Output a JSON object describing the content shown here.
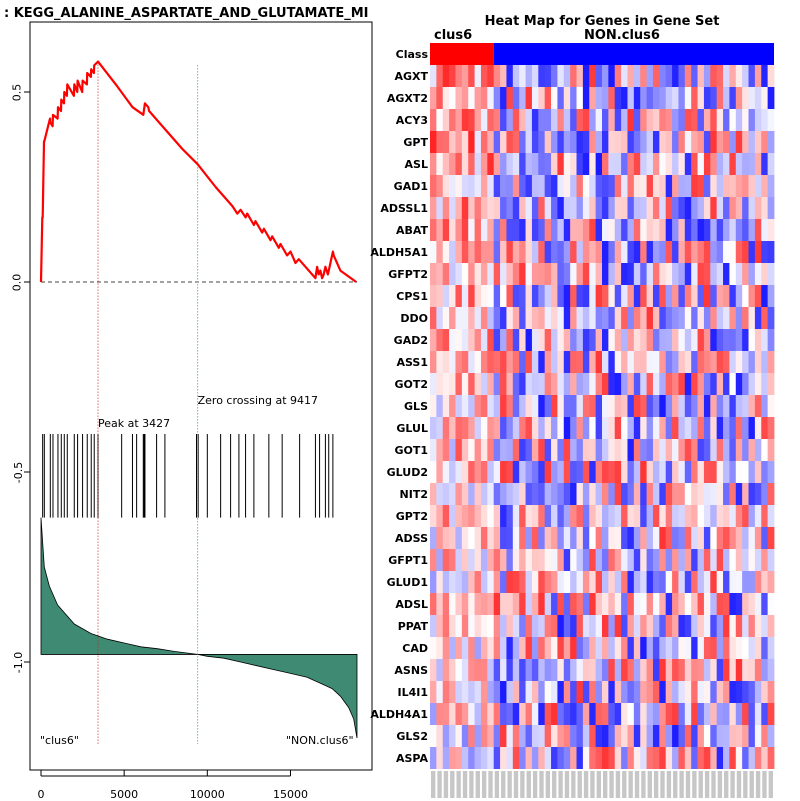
{
  "chart_data": [
    {
      "type": "line",
      "title": ": KEGG_ALANINE_ASPARTATE_AND_GLUTAMATE_MI",
      "xlabel": "",
      "ylabel": "",
      "xlim": [
        0,
        19000
      ],
      "ylim": [
        -1.25,
        0.65
      ],
      "x_ticks": [
        0,
        5000,
        10000,
        15000
      ],
      "x_tick_labels": [
        "0",
        "5000",
        "10000",
        "15000"
      ],
      "y_ticks": [
        0.5,
        0.0,
        -0.5,
        -1.0
      ],
      "y_tick_labels": [
        "0.5",
        "0.0",
        "-0.5",
        "-1.0"
      ],
      "peak": {
        "x": 3427,
        "label": "Peak at 3427"
      },
      "zero_crossing": {
        "x": 9417,
        "label": "Zero crossing at 9417"
      },
      "left_class_label": "\"clus6\"",
      "right_class_label": "\"NON.clus6\"",
      "es_curve": {
        "x": [
          0,
          80,
          100,
          180,
          200,
          540,
          560,
          700,
          720,
          1000,
          1020,
          1200,
          1220,
          1380,
          1400,
          1560,
          1580,
          1980,
          2000,
          2180,
          2200,
          2480,
          2500,
          2760,
          2780,
          3000,
          3020,
          3180,
          3200,
          3427,
          4500,
          5500,
          6150,
          6250,
          6450,
          6500,
          7500,
          8500,
          9417,
          10500,
          11500,
          11800,
          12000,
          12300,
          12400,
          12800,
          12900,
          13300,
          13400,
          13800,
          13900,
          14300,
          14400,
          14800,
          15000,
          15300,
          15500,
          16500,
          16600,
          16700,
          16800,
          16900,
          17000,
          17100,
          17250,
          17350,
          17550,
          17600,
          18000,
          18950
        ],
        "y": [
          0,
          0.17,
          0.17,
          0.37,
          0.37,
          0.43,
          0.42,
          0.41,
          0.44,
          0.43,
          0.46,
          0.45,
          0.48,
          0.47,
          0.5,
          0.49,
          0.52,
          0.49,
          0.52,
          0.5,
          0.53,
          0.5,
          0.53,
          0.52,
          0.55,
          0.54,
          0.56,
          0.55,
          0.57,
          0.58,
          0.52,
          0.46,
          0.44,
          0.47,
          0.46,
          0.45,
          0.4,
          0.35,
          0.31,
          0.25,
          0.2,
          0.18,
          0.19,
          0.17,
          0.18,
          0.15,
          0.16,
          0.13,
          0.14,
          0.11,
          0.12,
          0.09,
          0.1,
          0.07,
          0.08,
          0.05,
          0.06,
          0.01,
          0.04,
          0.02,
          0.03,
          0.01,
          0.02,
          0.04,
          0.02,
          0.04,
          0.08,
          0.07,
          0.03,
          0.0
        ]
      },
      "hit_positions": [
        100,
        200,
        560,
        720,
        1020,
        1220,
        1400,
        1580,
        2000,
        2200,
        2500,
        2780,
        3020,
        3200,
        3427,
        4850,
        5500,
        5750,
        6150,
        6200,
        6250,
        6950,
        7450,
        9350,
        9450,
        10000,
        10800,
        11400,
        11900,
        12300,
        12800,
        13700,
        14500,
        15550,
        16500,
        16750,
        17100,
        17300,
        17550
      ],
      "ranked_metric": {
        "x": [
          0,
          200,
          500,
          1000,
          2000,
          3000,
          4000,
          5000,
          6000,
          7000,
          8000,
          9417,
          10000,
          11000,
          12000,
          13000,
          14000,
          15000,
          16000,
          17000,
          17500,
          18000,
          18500,
          18800,
          19000
        ],
        "y": [
          -0.62,
          -0.75,
          -0.8,
          -0.85,
          -0.9,
          -0.925,
          -0.94,
          -0.95,
          -0.96,
          -0.965,
          -0.972,
          -0.98,
          -0.985,
          -0.99,
          -1.0,
          -1.01,
          -1.02,
          -1.03,
          -1.04,
          -1.06,
          -1.07,
          -1.09,
          -1.12,
          -1.15,
          -1.2
        ]
      }
    },
    {
      "type": "heatmap",
      "title": "Heat Map for Genes in Gene Set",
      "column_groups": [
        {
          "name": "clus6",
          "color": "#ff0000",
          "n_cols": 10
        },
        {
          "name": "NON.clus6",
          "color": "#0000ff",
          "n_cols": 44
        }
      ],
      "class_row_label": "Class",
      "genes": [
        "AGXT",
        "AGXT2",
        "ACY3",
        "GPT",
        "ASL",
        "GAD1",
        "ADSSL1",
        "ABAT",
        "ALDH5A1",
        "GFPT2",
        "CPS1",
        "DDO",
        "GAD2",
        "ASS1",
        "GOT2",
        "GLS",
        "GLUL",
        "GOT1",
        "GLUD2",
        "NIT2",
        "GPT2",
        "ADSS",
        "GFPT1",
        "GLUD1",
        "ADSL",
        "PPAT",
        "CAD",
        "ASNS",
        "IL4I1",
        "ALDH4A1",
        "GLS2",
        "ASPA"
      ],
      "value_range": [
        -1,
        1
      ],
      "color_scale": {
        "low": "#0000ff",
        "mid": "#ffffff",
        "high": "#ff0000"
      },
      "seed": 3427
    }
  ],
  "colors": {
    "es_line": "#ff0000",
    "peak_line": "#cc2222",
    "zero_line": "#22aa22",
    "metric_fill": "#3f8a72",
    "class_pos": "#ff0000",
    "class_neg": "#0000ff"
  }
}
